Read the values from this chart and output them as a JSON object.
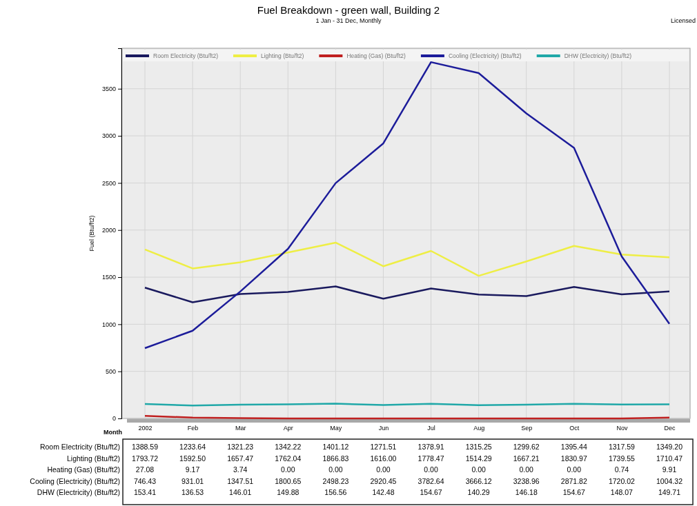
{
  "chart_data": {
    "type": "line",
    "title": "Fuel Breakdown - green wall, Building 2",
    "subtitle": "1 Jan - 31 Dec, Monthly",
    "xlabel": "Month",
    "ylabel": "Fuel (Btu/ft2)",
    "annotations": [
      "Licensed"
    ],
    "categories": [
      "2002",
      "Feb",
      "Mar",
      "Apr",
      "May",
      "Jun",
      "Jul",
      "Aug",
      "Sep",
      "Oct",
      "Nov",
      "Dec"
    ],
    "series": [
      {
        "name": "Room Electricity (Btu/ft2)",
        "color": "#1a1a5e",
        "values": [
          1388.59,
          1233.64,
          1321.23,
          1342.22,
          1401.12,
          1271.51,
          1378.91,
          1315.25,
          1299.62,
          1395.44,
          1317.59,
          1349.2
        ],
        "value_labels": [
          "1388.59",
          "1233.64",
          "1321.23",
          "1342.22",
          "1401.12",
          "1271.51",
          "1378.91",
          "1315.25",
          "1299.62",
          "1395.44",
          "1317.59",
          "1349.20"
        ]
      },
      {
        "name": "Lighting (Btu/ft2)",
        "color": "#eeee44",
        "values": [
          1793.72,
          1592.5,
          1657.47,
          1762.04,
          1866.83,
          1616.0,
          1778.47,
          1514.29,
          1667.21,
          1830.97,
          1739.55,
          1710.47
        ],
        "value_labels": [
          "1793.72",
          "1592.50",
          "1657.47",
          "1762.04",
          "1866.83",
          "1616.00",
          "1778.47",
          "1514.29",
          "1667.21",
          "1830.97",
          "1739.55",
          "1710.47"
        ]
      },
      {
        "name": "Heating (Gas) (Btu/ft2)",
        "color": "#c02020",
        "values": [
          27.08,
          9.17,
          3.74,
          0.0,
          0.0,
          0.0,
          0.0,
          0.0,
          0.0,
          0.0,
          0.74,
          9.91
        ],
        "value_labels": [
          "27.08",
          "9.17",
          "3.74",
          "0.00",
          "0.00",
          "0.00",
          "0.00",
          "0.00",
          "0.00",
          "0.00",
          "0.74",
          "9.91"
        ]
      },
      {
        "name": "Cooling (Electricity) (Btu/ft2)",
        "color": "#1c1c9a",
        "values": [
          746.43,
          931.01,
          1347.51,
          1800.65,
          2498.23,
          2920.45,
          3782.64,
          3666.12,
          3238.96,
          2871.82,
          1720.02,
          1004.32
        ],
        "value_labels": [
          "746.43",
          "931.01",
          "1347.51",
          "1800.65",
          "2498.23",
          "2920.45",
          "3782.64",
          "3666.12",
          "3238.96",
          "2871.82",
          "1720.02",
          "1004.32"
        ]
      },
      {
        "name": "DHW (Electricity) (Btu/ft2)",
        "color": "#20a8a8",
        "values": [
          153.41,
          136.53,
          146.01,
          149.88,
          156.56,
          142.48,
          154.67,
          140.29,
          146.18,
          154.67,
          148.07,
          149.71
        ],
        "value_labels": [
          "153.41",
          "136.53",
          "146.01",
          "149.88",
          "156.56",
          "142.48",
          "154.67",
          "140.29",
          "146.18",
          "154.67",
          "148.07",
          "149.71"
        ]
      }
    ],
    "ylim": [
      0,
      3930
    ],
    "yticks": [
      0,
      500,
      1000,
      1500,
      2000,
      2500,
      3000,
      3500
    ],
    "grid": true,
    "legend": "top",
    "marker": "none",
    "line_style": "solid"
  }
}
